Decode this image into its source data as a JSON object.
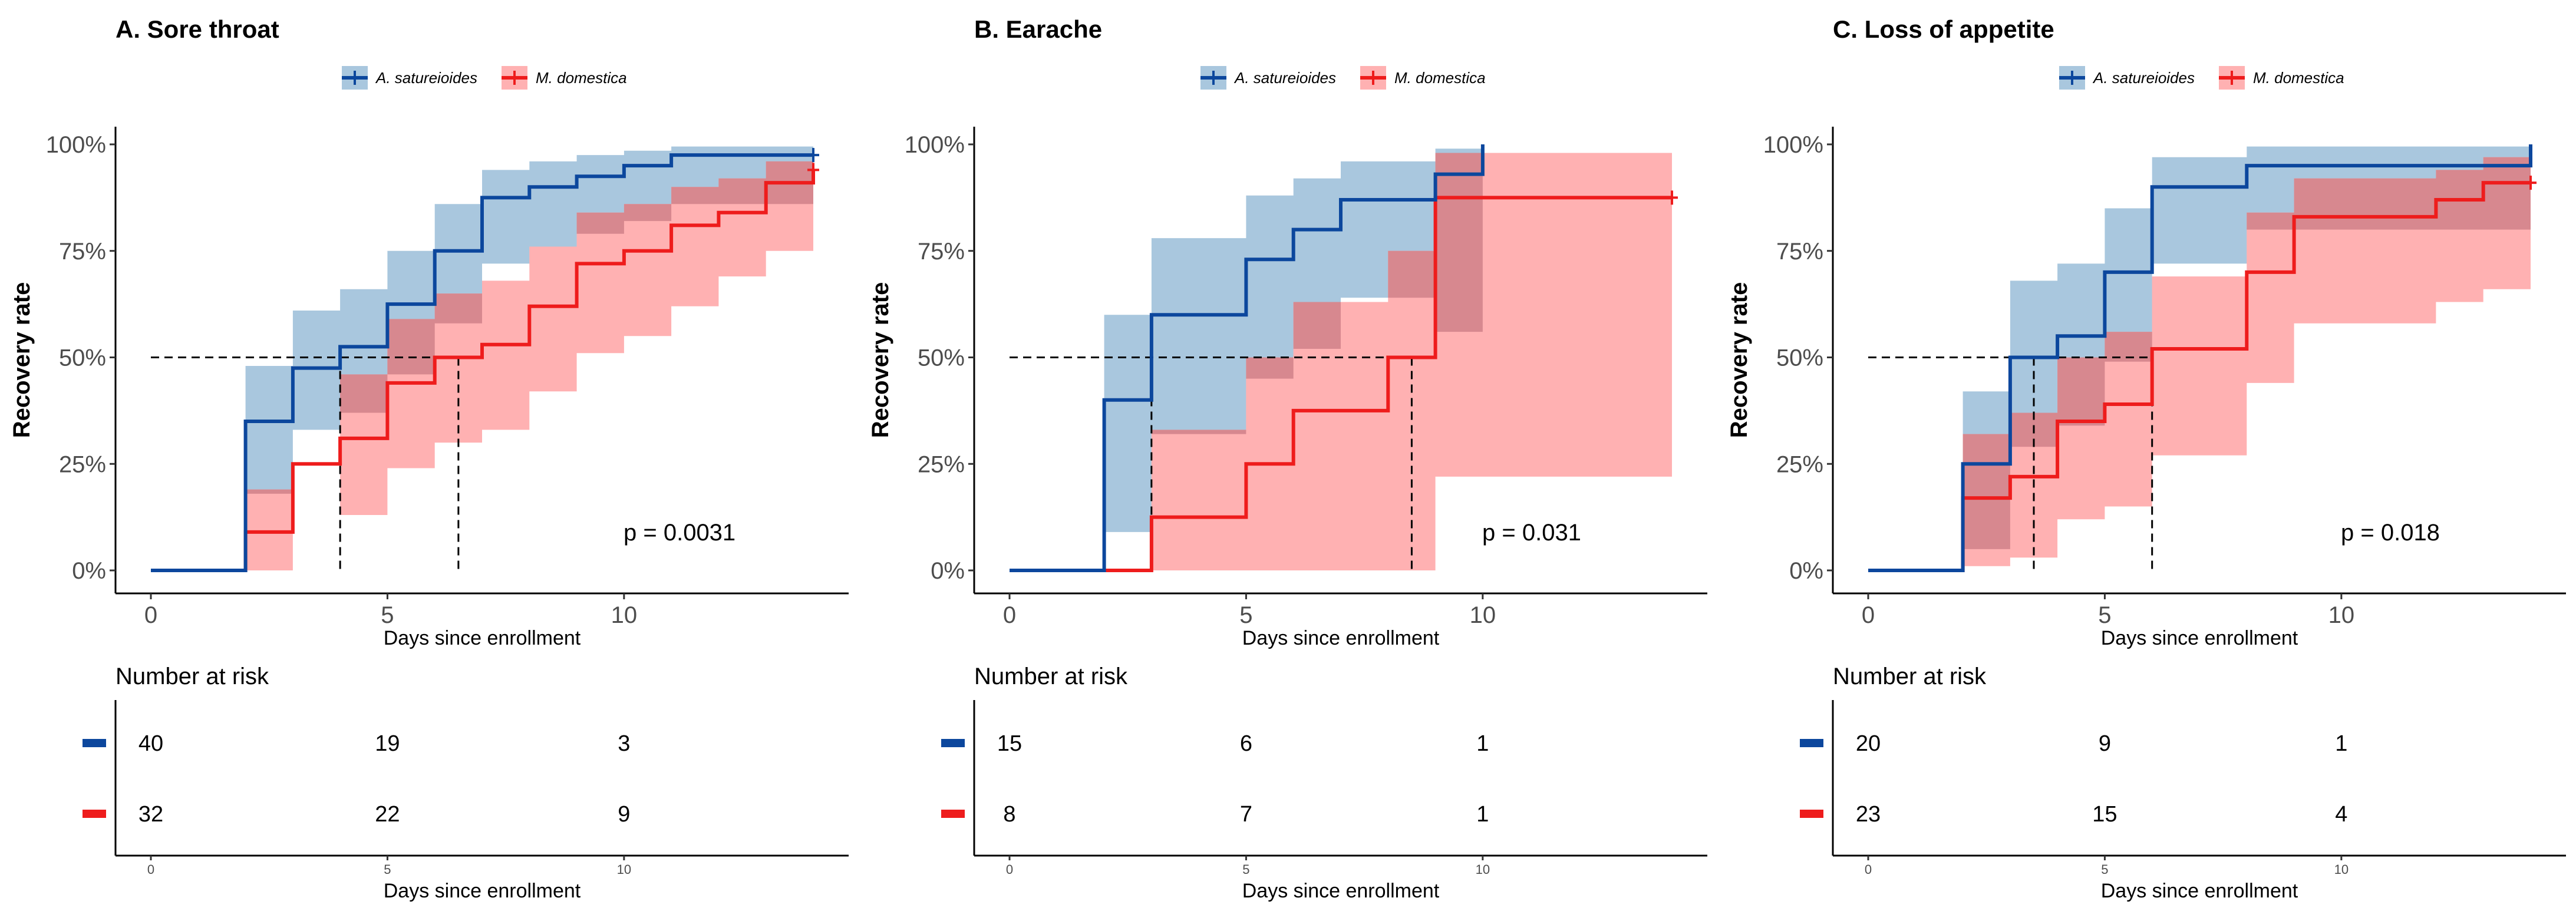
{
  "colors": {
    "blue_line": "#0C479D",
    "blue_band": "#A9C7DE",
    "red_line": "#EE1C1C",
    "red_band": "#FFB1B2",
    "overlap_band": "#D7888F"
  },
  "chart_data": [
    {
      "type": "line",
      "panel": "A",
      "title": "A. Sore throat",
      "xlabel": "Days since enrollment",
      "ylabel": "Recovery rate",
      "xlim": [
        0,
        14
      ],
      "ylim": [
        0,
        1
      ],
      "x_ticks": [
        0,
        5,
        10
      ],
      "x_tick_labels": [
        "0",
        "5",
        "10"
      ],
      "y_ticks": [
        0,
        0.25,
        0.5,
        0.75,
        1.0
      ],
      "y_tick_labels": [
        "0%",
        "25%",
        "50%",
        "75%",
        "100%"
      ],
      "legend": [
        "A. satureioides",
        "M. domestica"
      ],
      "legend_position": "top-center",
      "p_value": "p = 0.0031",
      "median_lines": [
        {
          "x": 4,
          "y": 0.5
        },
        {
          "x": 6.5,
          "y": 0.5
        }
      ],
      "series": [
        {
          "name": "A. satureioides",
          "steps": [
            [
              0,
              0
            ],
            [
              2,
              0.35
            ],
            [
              3,
              0.475
            ],
            [
              4,
              0.525
            ],
            [
              5,
              0.625
            ],
            [
              6,
              0.75
            ],
            [
              7,
              0.875
            ],
            [
              8,
              0.9
            ],
            [
              9,
              0.925
            ],
            [
              10,
              0.95
            ],
            [
              11,
              0.975
            ],
            [
              14,
              0.975
            ]
          ],
          "ci": [
            [
              0,
              0,
              0
            ],
            [
              2,
              0.18,
              0.48
            ],
            [
              3,
              0.33,
              0.61
            ],
            [
              4,
              0.37,
              0.66
            ],
            [
              5,
              0.46,
              0.75
            ],
            [
              6,
              0.58,
              0.86
            ],
            [
              7,
              0.72,
              0.94
            ],
            [
              8,
              0.76,
              0.96
            ],
            [
              9,
              0.79,
              0.975
            ],
            [
              10,
              0.82,
              0.985
            ],
            [
              11,
              0.86,
              0.995
            ],
            [
              14,
              0.86,
              0.995
            ]
          ],
          "censor_x": [
            14
          ]
        },
        {
          "name": "M. domestica",
          "steps": [
            [
              0,
              0
            ],
            [
              2,
              0.09
            ],
            [
              3,
              0.25
            ],
            [
              4,
              0.31
            ],
            [
              5,
              0.44
            ],
            [
              6,
              0.5
            ],
            [
              7,
              0.53
            ],
            [
              8,
              0.62
            ],
            [
              9,
              0.72
            ],
            [
              10,
              0.75
            ],
            [
              11,
              0.81
            ],
            [
              12,
              0.84
            ],
            [
              13,
              0.91
            ],
            [
              14,
              0.94
            ]
          ],
          "ci": [
            [
              0,
              0,
              0
            ],
            [
              2,
              0,
              0.19
            ],
            [
              3,
              0.09
            ],
            [
              4,
              0.13,
              0.46
            ],
            [
              5,
              0.24,
              0.59
            ],
            [
              6,
              0.3,
              0.65
            ],
            [
              7,
              0.33,
              0.68
            ],
            [
              8,
              0.42,
              0.76
            ],
            [
              9,
              0.51,
              0.84
            ],
            [
              10,
              0.55,
              0.86
            ],
            [
              11,
              0.62,
              0.9
            ],
            [
              12,
              0.69,
              0.92
            ],
            [
              13,
              0.75,
              0.96
            ],
            [
              14,
              0.83,
              0.97
            ]
          ],
          "censor_x": [
            14
          ]
        }
      ],
      "risk_table": {
        "title": "Number at risk",
        "x": [
          0,
          5,
          10
        ],
        "x_tick_labels": [
          "0",
          "5",
          "10"
        ],
        "xlabel": "Days since enrollment",
        "rows": [
          {
            "name": "A. satureioides",
            "values": [
              "40",
              "19",
              "3"
            ]
          },
          {
            "name": "M. domestica",
            "values": [
              "32",
              "22",
              "9"
            ]
          }
        ]
      }
    },
    {
      "type": "line",
      "panel": "B",
      "title": "B. Earache",
      "xlabel": "Days since enrollment",
      "ylabel": "Recovery rate",
      "xlim": [
        0,
        14
      ],
      "ylim": [
        0,
        1
      ],
      "x_ticks": [
        0,
        5,
        10
      ],
      "x_tick_labels": [
        "0",
        "5",
        "10"
      ],
      "y_ticks": [
        0,
        0.25,
        0.5,
        0.75,
        1.0
      ],
      "y_tick_labels": [
        "0%",
        "25%",
        "50%",
        "75%",
        "100%"
      ],
      "legend": [
        "A. satureioides",
        "M. domestica"
      ],
      "legend_position": "top-center",
      "p_value": "p = 0.031",
      "median_lines": [
        {
          "x": 3,
          "y": 0.5
        },
        {
          "x": 8.5,
          "y": 0.5
        }
      ],
      "series": [
        {
          "name": "A. satureioides",
          "steps": [
            [
              0,
              0
            ],
            [
              2,
              0.4
            ],
            [
              3,
              0.6
            ],
            [
              5,
              0.73
            ],
            [
              6,
              0.8
            ],
            [
              7,
              0.87
            ],
            [
              9,
              0.93
            ],
            [
              10,
              1.0
            ]
          ],
          "ci": [
            [
              0,
              0,
              0
            ],
            [
              2,
              0.09,
              0.6
            ],
            [
              3,
              0.32,
              0.78
            ],
            [
              5,
              0.45,
              0.88
            ],
            [
              6,
              0.52,
              0.92
            ],
            [
              7,
              0.64,
              0.96
            ],
            [
              9,
              0.56,
              0.99
            ],
            [
              10,
              0.56,
              0.99
            ]
          ],
          "censor_x": []
        },
        {
          "name": "M. domestica",
          "steps": [
            [
              0,
              0
            ],
            [
              3,
              0.125
            ],
            [
              5,
              0.25
            ],
            [
              6,
              0.375
            ],
            [
              8,
              0.5
            ],
            [
              9,
              0.875
            ],
            [
              14,
              0.875
            ]
          ],
          "ci": [
            [
              0,
              0,
              0
            ],
            [
              3,
              0,
              0.33
            ],
            [
              5,
              0,
              0.5
            ],
            [
              6,
              0,
              0.63
            ],
            [
              8,
              0,
              0.75
            ],
            [
              9,
              0.22,
              0.98
            ],
            [
              14,
              0.22,
              0.98
            ]
          ],
          "censor_x": [
            14
          ]
        }
      ],
      "risk_table": {
        "title": "Number at risk",
        "x": [
          0,
          5,
          10
        ],
        "x_tick_labels": [
          "0",
          "5",
          "10"
        ],
        "xlabel": "Days since enrollment",
        "rows": [
          {
            "name": "A. satureioides",
            "values": [
              "15",
              "6",
              "1"
            ]
          },
          {
            "name": "M. domestica",
            "values": [
              "8",
              "7",
              "1"
            ]
          }
        ]
      }
    },
    {
      "type": "line",
      "panel": "C",
      "title": "C. Loss of appetite",
      "xlabel": "Days since enrollment",
      "ylabel": "Recovery rate",
      "xlim": [
        0,
        14
      ],
      "ylim": [
        0,
        1
      ],
      "x_ticks": [
        0,
        5,
        10
      ],
      "x_tick_labels": [
        "0",
        "5",
        "10"
      ],
      "y_ticks": [
        0,
        0.25,
        0.5,
        0.75,
        1.0
      ],
      "y_tick_labels": [
        "0%",
        "25%",
        "50%",
        "75%",
        "100%"
      ],
      "legend": [
        "A. satureioides",
        "M. domestica"
      ],
      "legend_position": "top-center",
      "p_value": "p = 0.018",
      "median_lines": [
        {
          "x": 3.5,
          "y": 0.5
        },
        {
          "x": 6,
          "y": 0.5
        }
      ],
      "series": [
        {
          "name": "A. satureioides",
          "steps": [
            [
              0,
              0
            ],
            [
              2,
              0.25
            ],
            [
              3,
              0.5
            ],
            [
              4,
              0.55
            ],
            [
              5,
              0.7
            ],
            [
              6,
              0.9
            ],
            [
              8,
              0.95
            ],
            [
              14,
              1.0
            ]
          ],
          "ci": [
            [
              0,
              0,
              0
            ],
            [
              2,
              0.05,
              0.42
            ],
            [
              3,
              0.29,
              0.68
            ],
            [
              4,
              0.34,
              0.72
            ],
            [
              5,
              0.49,
              0.85
            ],
            [
              6,
              0.72,
              0.97
            ],
            [
              8,
              0.8,
              0.995
            ],
            [
              14,
              0.67,
              0.995
            ]
          ],
          "censor_x": []
        },
        {
          "name": "M. domestica",
          "steps": [
            [
              0,
              0
            ],
            [
              2,
              0.17
            ],
            [
              3,
              0.22
            ],
            [
              4,
              0.35
            ],
            [
              5,
              0.39
            ],
            [
              6,
              0.52
            ],
            [
              8,
              0.7
            ],
            [
              9,
              0.83
            ],
            [
              12,
              0.87
            ],
            [
              13,
              0.91
            ],
            [
              14,
              0.91
            ]
          ],
          "ci": [
            [
              0,
              0,
              0
            ],
            [
              2,
              0.01,
              0.32
            ],
            [
              3,
              0.03,
              0.37
            ],
            [
              4,
              0.12,
              0.5
            ],
            [
              5,
              0.15,
              0.56
            ],
            [
              6,
              0.27,
              0.69
            ],
            [
              8,
              0.44,
              0.84
            ],
            [
              9,
              0.58,
              0.92
            ],
            [
              12,
              0.63,
              0.94
            ],
            [
              13,
              0.66,
              0.97
            ],
            [
              14,
              0.66,
              0.97
            ]
          ],
          "censor_x": [
            14
          ]
        }
      ],
      "risk_table": {
        "title": "Number at risk",
        "x": [
          0,
          5,
          10
        ],
        "x_tick_labels": [
          "0",
          "5",
          "10"
        ],
        "xlabel": "Days since enrollment",
        "rows": [
          {
            "name": "A. satureioides",
            "values": [
              "20",
              "9",
              "1"
            ]
          },
          {
            "name": "M. domestica",
            "values": [
              "23",
              "15",
              "4"
            ]
          }
        ]
      }
    }
  ]
}
